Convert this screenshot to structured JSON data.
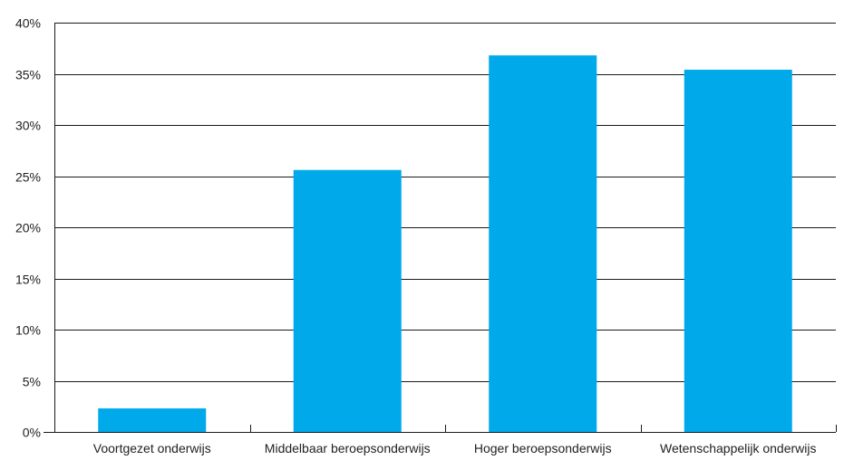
{
  "chart_data": {
    "type": "bar",
    "categories": [
      "Voortgezet onderwijs",
      "Middelbaar beroepsonderwijs",
      "Hoger beroepsonderwijs",
      "Wetenschappelijk onderwijs"
    ],
    "values": [
      2.3,
      25.6,
      36.8,
      35.4
    ],
    "ylim": [
      0,
      40
    ],
    "yticks": [
      0,
      5,
      10,
      15,
      20,
      25,
      30,
      35,
      40
    ],
    "ytick_labels": [
      "0%",
      "5%",
      "10%",
      "15%",
      "20%",
      "25%",
      "30%",
      "35%",
      "40%"
    ],
    "bar_color": "#00aaea",
    "gridlines": true,
    "title": "",
    "xlabel": "",
    "ylabel": ""
  }
}
